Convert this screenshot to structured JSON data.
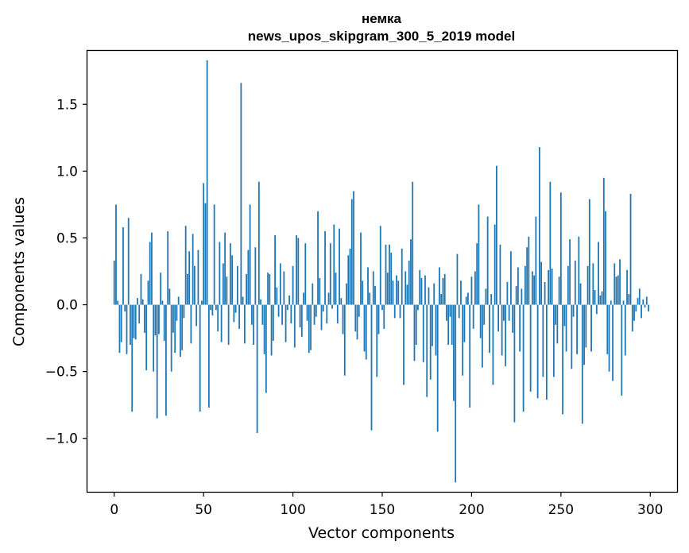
{
  "chart_data": {
    "type": "bar",
    "title": "немка",
    "subtitle": "news_upos_skipgram_300_5_2019 model",
    "xlabel": "Vector components",
    "ylabel": "Components values",
    "xlim": [
      -15,
      315
    ],
    "ylim": [
      -1.4,
      1.9
    ],
    "xticks": [
      0,
      50,
      100,
      150,
      200,
      250,
      300
    ],
    "xtick_labels": [
      "0",
      "50",
      "100",
      "150",
      "200",
      "250",
      "300"
    ],
    "yticks": [
      -1.0,
      -0.5,
      0.0,
      0.5,
      1.0,
      1.5
    ],
    "ytick_labels": [
      "−1.0",
      "−0.5",
      "0.0",
      "0.5",
      "1.0",
      "1.5"
    ],
    "grid": false,
    "legend": "none",
    "bar_color": "#1f77b4",
    "n_components": 300,
    "values": [
      0.33,
      0.75,
      0.03,
      -0.36,
      -0.28,
      0.58,
      -0.05,
      -0.37,
      0.65,
      -0.3,
      -0.8,
      -0.25,
      -0.26,
      0.05,
      -0.14,
      0.23,
      0.04,
      -0.21,
      -0.49,
      0.18,
      0.47,
      0.54,
      -0.5,
      -0.23,
      -0.85,
      -0.22,
      0.24,
      0.03,
      -0.27,
      -0.83,
      0.55,
      0.12,
      -0.5,
      -0.21,
      -0.36,
      -0.12,
      0.06,
      -0.39,
      -0.34,
      -0.1,
      0.59,
      0.23,
      0.4,
      -0.29,
      0.53,
      0.29,
      -0.16,
      0.41,
      -0.8,
      0.03,
      0.91,
      0.76,
      1.83,
      -0.77,
      -0.04,
      -0.08,
      0.75,
      -0.04,
      -0.2,
      0.47,
      -0.28,
      0.31,
      0.54,
      0.21,
      -0.3,
      0.46,
      0.37,
      -0.13,
      -0.06,
      0.29,
      -0.18,
      1.66,
      0.06,
      -0.29,
      0.23,
      0.41,
      0.75,
      -0.15,
      -0.3,
      0.43,
      -0.96,
      0.92,
      0.04,
      -0.15,
      -0.37,
      -0.66,
      0.24,
      0.23,
      -0.38,
      -0.27,
      0.52,
      0.13,
      -0.09,
      0.31,
      -0.15,
      0.25,
      -0.28,
      -0.04,
      0.07,
      -0.14,
      0.29,
      -0.32,
      0.52,
      0.5,
      -0.17,
      -0.24,
      0.09,
      0.46,
      -0.12,
      -0.36,
      -0.34,
      0.16,
      -0.15,
      -0.09,
      0.7,
      0.2,
      -0.19,
      -0.05,
      0.55,
      -0.14,
      0.09,
      0.46,
      -0.03,
      0.6,
      0.24,
      -0.14,
      0.57,
      0.05,
      -0.22,
      -0.53,
      0.16,
      0.37,
      0.42,
      0.79,
      0.85,
      -0.2,
      -0.26,
      -0.09,
      0.54,
      0.18,
      -0.35,
      -0.41,
      0.28,
      0.09,
      -0.94,
      0.25,
      0.14,
      -0.54,
      -0.22,
      0.59,
      -0.04,
      -0.18,
      0.45,
      0.24,
      0.45,
      0.39,
      0.18,
      -0.1,
      0.22,
      0.18,
      -0.1,
      0.42,
      -0.6,
      0.25,
      0.15,
      0.33,
      0.49,
      0.92,
      -0.42,
      -0.3,
      -0.04,
      0.26,
      0.2,
      -0.43,
      0.22,
      -0.69,
      0.13,
      -0.56,
      -0.31,
      0.16,
      -0.38,
      -0.95,
      0.28,
      0.08,
      0.2,
      0.23,
      -0.12,
      -0.3,
      -0.09,
      -0.3,
      -0.72,
      -1.33,
      0.38,
      -0.1,
      0.18,
      -0.53,
      -0.28,
      0.06,
      0.09,
      -0.77,
      0.21,
      -0.18,
      0.25,
      0.46,
      0.75,
      -0.25,
      -0.47,
      -0.15,
      0.12,
      0.66,
      -0.36,
      0.08,
      -0.6,
      0.6,
      1.04,
      -0.2,
      0.45,
      -0.38,
      -0.12,
      -0.46,
      0.17,
      -0.12,
      0.4,
      -0.21,
      -0.88,
      0.14,
      0.28,
      -0.35,
      0.12,
      -0.8,
      0.29,
      0.43,
      0.51,
      -0.65,
      0.25,
      0.22,
      0.66,
      -0.7,
      1.18,
      0.32,
      -0.54,
      0.17,
      -0.71,
      0.26,
      0.92,
      0.27,
      -0.54,
      -0.15,
      -0.29,
      0.21,
      0.84,
      -0.82,
      -0.16,
      -0.35,
      0.29,
      0.49,
      -0.48,
      -0.09,
      0.33,
      -0.37,
      0.51,
      0.16,
      -0.89,
      -0.45,
      -0.32,
      0.29,
      0.79,
      -0.35,
      0.31,
      0.11,
      -0.07,
      0.47,
      0.07,
      0.1,
      0.95,
      0.7,
      -0.37,
      -0.5,
      0.03,
      -0.57,
      0.31,
      0.21,
      0.22,
      0.34,
      -0.68,
      0.03,
      -0.38,
      0.26,
      0.08,
      0.83,
      -0.2,
      -0.12,
      -0.05,
      0.05,
      0.12,
      -0.1,
      0.04,
      -0.02,
      0.06,
      -0.05
    ]
  }
}
